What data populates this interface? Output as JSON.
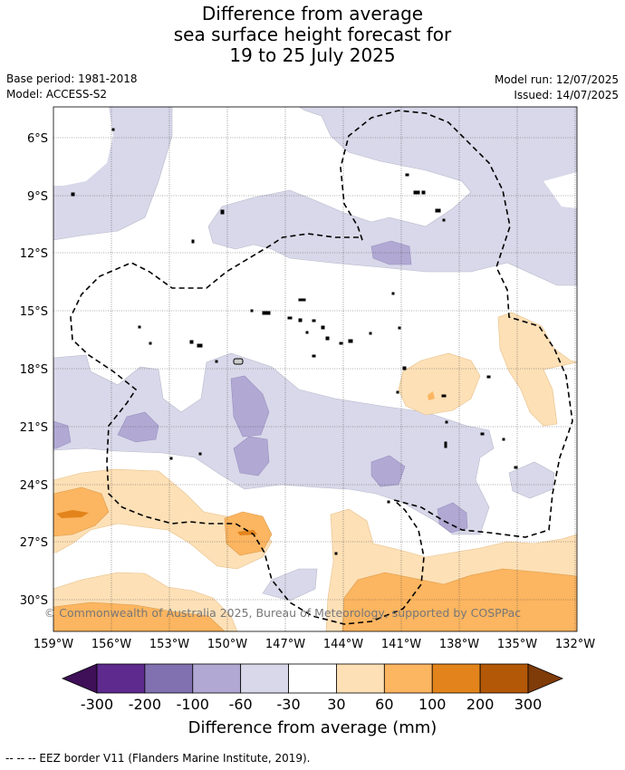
{
  "title": {
    "line1": "Difference from average",
    "line2": "sea surface height forecast for",
    "line3": "19 to 25 July 2025"
  },
  "header": {
    "base_period": "Base period: 1981-2018",
    "model": "Model: ACCESS-S2",
    "model_run": "Model run: 12/07/2025",
    "issued": "Issued: 14/07/2025"
  },
  "map": {
    "lat_labels": [
      "6°S",
      "9°S",
      "12°S",
      "15°S",
      "18°S",
      "21°S",
      "24°S",
      "27°S",
      "30°S"
    ],
    "lon_labels": [
      "159°W",
      "156°W",
      "153°W",
      "150°W",
      "147°W",
      "144°W",
      "141°W",
      "138°W",
      "135°W",
      "132°W"
    ],
    "copyright": "© Commonwealth of Australia 2025, Bureau of Meteorology, supported by COSPPac"
  },
  "colorbar": {
    "ticks": [
      "-300",
      "-200",
      "-100",
      "-60",
      "-30",
      "30",
      "60",
      "100",
      "200",
      "300"
    ],
    "colors": [
      "#3f0f57",
      "#5e2a8e",
      "#8171b0",
      "#b1a9d3",
      "#d8d8ea",
      "#ffffff",
      "#fde0b6",
      "#fcb560",
      "#e2841b",
      "#b35807",
      "#7f3b08"
    ],
    "label": "Difference from average (mm)"
  },
  "footer": {
    "legend": "--  --  -- EEZ border V11 (Flanders Marine Institute, 2019)."
  }
}
